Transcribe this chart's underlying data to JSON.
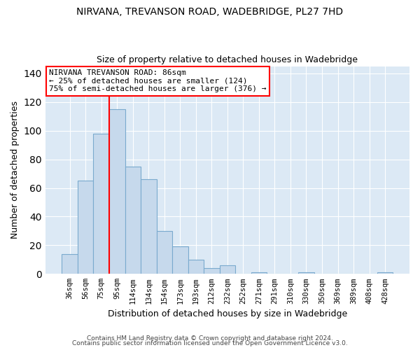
{
  "title": "NIRVANA, TREVANSON ROAD, WADEBRIDGE, PL27 7HD",
  "subtitle": "Size of property relative to detached houses in Wadebridge",
  "xlabel": "Distribution of detached houses by size in Wadebridge",
  "ylabel": "Number of detached properties",
  "bar_labels": [
    "36sqm",
    "56sqm",
    "75sqm",
    "95sqm",
    "114sqm",
    "134sqm",
    "154sqm",
    "173sqm",
    "193sqm",
    "212sqm",
    "232sqm",
    "252sqm",
    "271sqm",
    "291sqm",
    "310sqm",
    "330sqm",
    "350sqm",
    "369sqm",
    "389sqm",
    "408sqm",
    "428sqm"
  ],
  "bar_values": [
    14,
    65,
    98,
    115,
    75,
    66,
    30,
    19,
    10,
    4,
    6,
    0,
    1,
    0,
    0,
    1,
    0,
    0,
    0,
    0,
    1
  ],
  "bar_color": "#c6d9ec",
  "bar_edge_color": "#7aaace",
  "ylim": [
    0,
    145
  ],
  "yticks": [
    0,
    20,
    40,
    60,
    80,
    100,
    120,
    140
  ],
  "red_line_x": 2.5,
  "annotation_title": "NIRVANA TREVANSON ROAD: 86sqm",
  "annotation_line1": "← 25% of detached houses are smaller (124)",
  "annotation_line2": "75% of semi-detached houses are larger (376) →",
  "footer1": "Contains HM Land Registry data © Crown copyright and database right 2024.",
  "footer2": "Contains public sector information licensed under the Open Government Licence v3.0.",
  "background_color": "#ffffff",
  "plot_bg_color": "#dce9f5",
  "grid_color": "#ffffff"
}
